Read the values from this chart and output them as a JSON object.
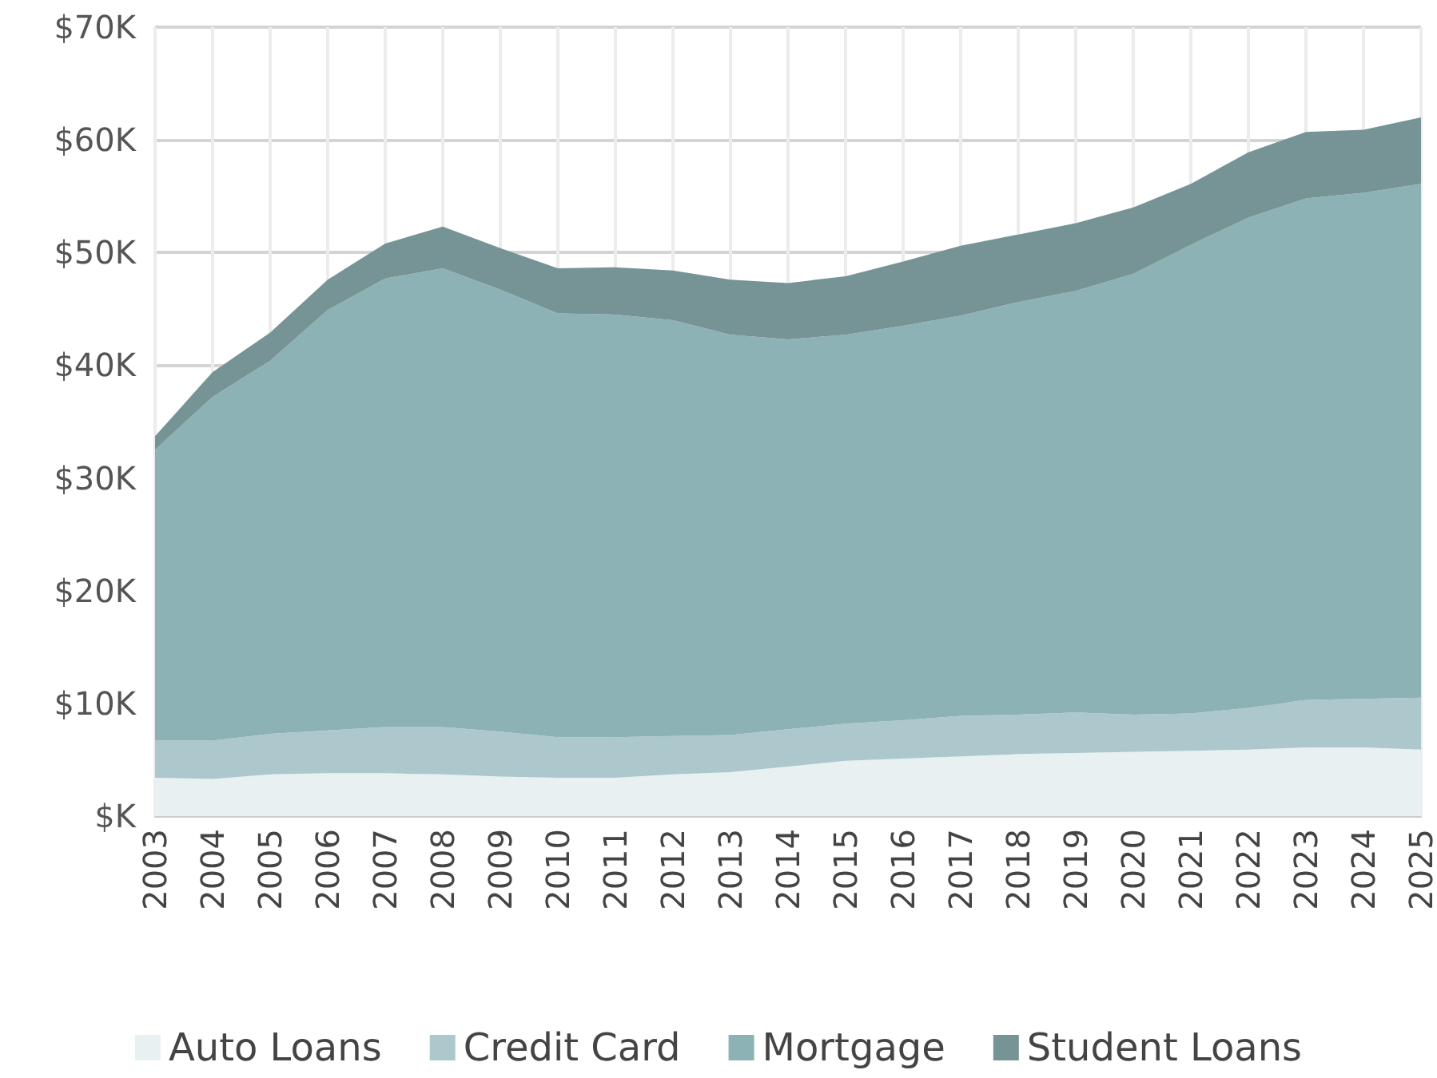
{
  "chart_data": {
    "type": "area",
    "stacked": true,
    "categories": [
      "2003",
      "2004",
      "2005",
      "2006",
      "2007",
      "2008",
      "2009",
      "2010",
      "2011",
      "2012",
      "2013",
      "2014",
      "2015",
      "2016",
      "2017",
      "2018",
      "2019",
      "2020",
      "2021",
      "2022",
      "2023",
      "2024",
      "2025"
    ],
    "series": [
      {
        "name": "Auto Loans",
        "color": "#e8f0f1",
        "values": [
          3.4,
          3.3,
          3.7,
          3.8,
          3.8,
          3.7,
          3.5,
          3.4,
          3.4,
          3.7,
          3.9,
          4.4,
          4.9,
          5.1,
          5.3,
          5.5,
          5.6,
          5.7,
          5.8,
          5.9,
          6.1,
          6.1,
          5.9
        ]
      },
      {
        "name": "Credit Card",
        "color": "#acc8cc",
        "values": [
          3.3,
          3.4,
          3.6,
          3.8,
          4.1,
          4.2,
          4.0,
          3.6,
          3.6,
          3.4,
          3.3,
          3.3,
          3.3,
          3.4,
          3.6,
          3.5,
          3.6,
          3.3,
          3.3,
          3.7,
          4.2,
          4.3,
          4.6
        ]
      },
      {
        "name": "Mortgage",
        "color": "#8db2b5",
        "values": [
          25.8,
          30.5,
          33.1,
          37.3,
          39.8,
          40.7,
          39.2,
          37.6,
          37.5,
          36.9,
          35.5,
          34.6,
          34.5,
          35.0,
          35.5,
          36.6,
          37.4,
          39.1,
          41.6,
          43.5,
          44.5,
          44.9,
          45.6
        ]
      },
      {
        "name": "Student Loans",
        "color": "#769496",
        "values": [
          1.2,
          2.2,
          2.5,
          2.7,
          3.1,
          3.7,
          3.7,
          4.0,
          4.2,
          4.4,
          4.9,
          5.0,
          5.2,
          5.7,
          6.2,
          6.0,
          6.0,
          5.9,
          5.4,
          5.8,
          5.9,
          5.6,
          5.9
        ]
      }
    ],
    "ylim": [
      0,
      70
    ],
    "yticks": [
      {
        "value": 0,
        "label": "$K"
      },
      {
        "value": 10,
        "label": "$10K"
      },
      {
        "value": 20,
        "label": "$20K"
      },
      {
        "value": 30,
        "label": "$30K"
      },
      {
        "value": 40,
        "label": "$40K"
      },
      {
        "value": 50,
        "label": "$50K"
      },
      {
        "value": 60,
        "label": "$60K"
      },
      {
        "value": 70,
        "label": "$70K"
      }
    ],
    "grid": true,
    "legend": "bottom",
    "marker": "none"
  }
}
